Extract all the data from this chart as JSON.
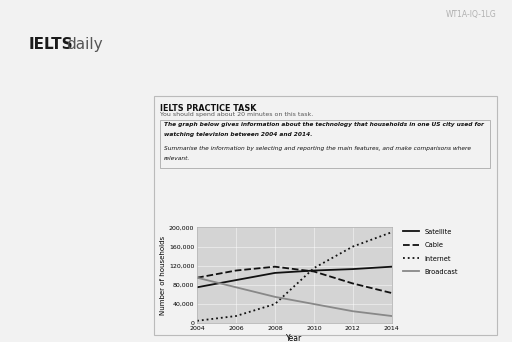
{
  "years": [
    2004,
    2006,
    2008,
    2010,
    2012,
    2014
  ],
  "satellite": [
    75000,
    90000,
    105000,
    110000,
    113000,
    118000
  ],
  "cable": [
    95000,
    110000,
    118000,
    108000,
    83000,
    63000
  ],
  "internet": [
    5000,
    15000,
    40000,
    115000,
    160000,
    190000
  ],
  "broadcast": [
    95000,
    75000,
    55000,
    40000,
    25000,
    15000
  ],
  "ylabel": "Number of households",
  "xlabel": "Year",
  "ylim": [
    0,
    200000
  ],
  "yticks": [
    0,
    40000,
    80000,
    120000,
    160000,
    200000
  ],
  "ytick_labels": [
    "0",
    "40,000",
    "80,000",
    "120,000",
    "160,000",
    "200,000"
  ],
  "xticks": [
    2004,
    2006,
    2008,
    2010,
    2012,
    2014
  ],
  "legend_labels": [
    "Satellite",
    "Cable",
    "Internet",
    "Broadcast"
  ],
  "plot_bg": "#d4d4d4",
  "outer_bg": "#f2f2f2",
  "card_bg": "#ffffff",
  "task_title": "IELTS PRACTICE TASK",
  "task_subtitle": "You should spend about 20 minutes on this task.",
  "prompt_line1": "The graph below gives information about the technology that households in one US city used for",
  "prompt_line2": "watching television between 2004 and 2014.",
  "prompt_line3": "Summarise the information by selecting and reporting the main features, and make comparisons where",
  "prompt_line4": "relevant.",
  "watermark": "WT1A-IQ-1LG",
  "ielts_bold": "IELTS",
  "ielts_regular": "daily"
}
